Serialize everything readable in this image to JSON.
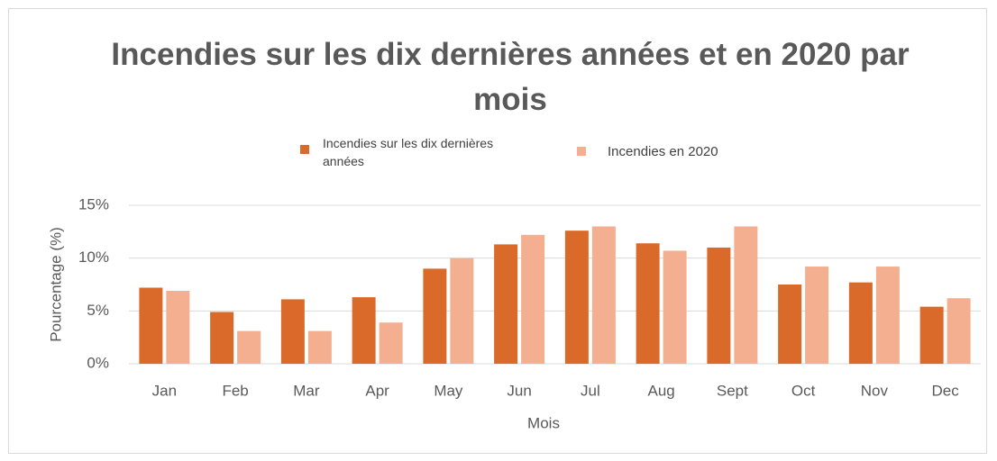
{
  "chart_data": {
    "type": "bar",
    "title": "Incendies sur les dix dernières années et en 2020 par mois",
    "x_label": "Mois",
    "y_label": "Pourcentage (%)",
    "categories": [
      "Jan",
      "Feb",
      "Mar",
      "Apr",
      "May",
      "Jun",
      "Jul",
      "Aug",
      "Sept",
      "Oct",
      "Nov",
      "Dec"
    ],
    "series": [
      {
        "name": "Incendies sur les dix dernières années",
        "color": "#d96a2a",
        "values": [
          7.2,
          4.9,
          6.1,
          6.3,
          9.0,
          11.3,
          12.6,
          11.4,
          11.0,
          7.5,
          7.7,
          5.4
        ]
      },
      {
        "name": "Incendies en 2020",
        "color": "#f4ae90",
        "values": [
          6.9,
          3.1,
          3.1,
          3.9,
          10.0,
          12.2,
          13.0,
          10.7,
          13.0,
          9.2,
          9.2,
          6.2
        ]
      }
    ],
    "ylim": [
      0,
      15
    ],
    "yticks": [
      {
        "value": 0,
        "label": "0%"
      },
      {
        "value": 5,
        "label": "5%"
      },
      {
        "value": 10,
        "label": "10%"
      },
      {
        "value": 15,
        "label": "15%"
      }
    ],
    "grid": true,
    "legend": "top"
  }
}
